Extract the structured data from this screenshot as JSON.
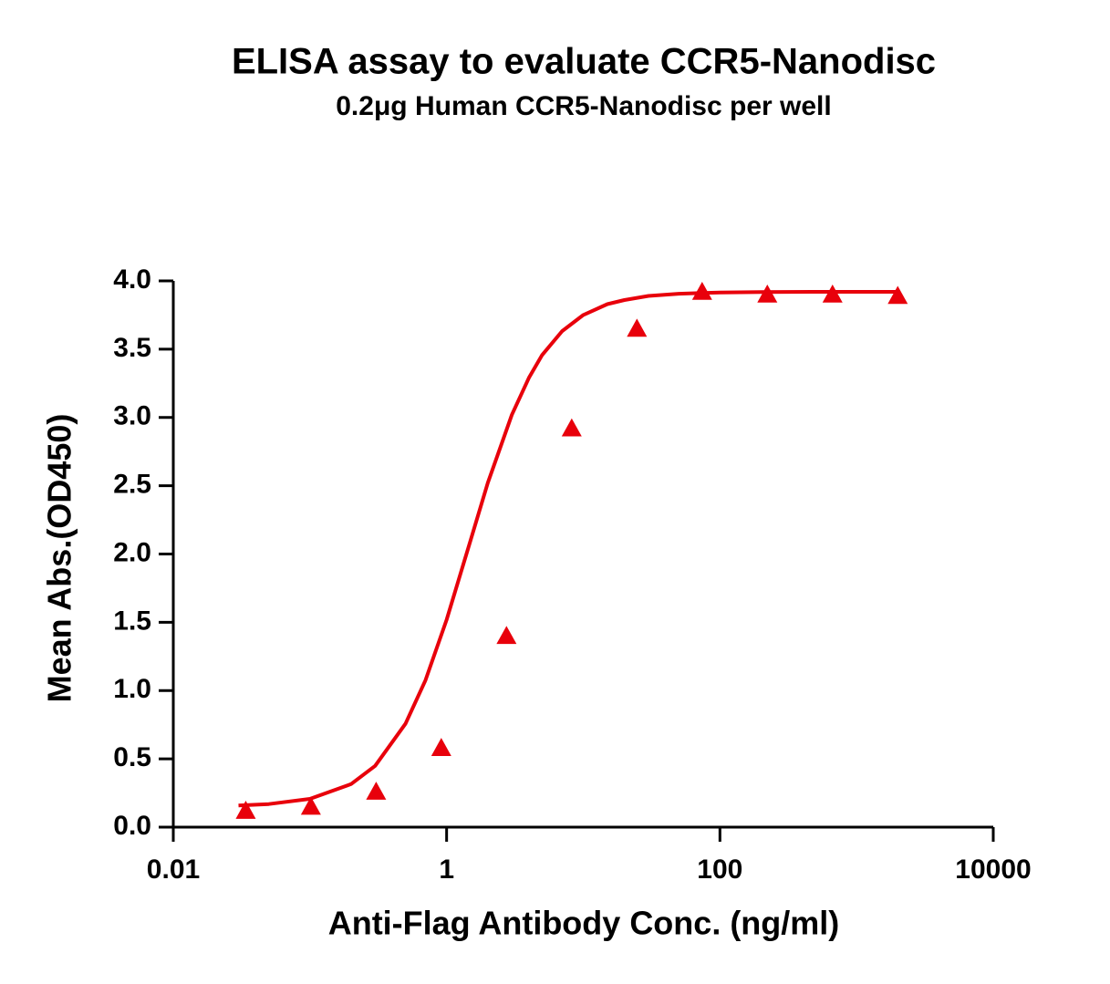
{
  "chart_data": {
    "type": "scatter",
    "title": "ELISA assay to evaluate CCR5-Nanodisc",
    "subtitle": "0.2μg Human CCR5-Nanodisc per well",
    "x_label": "Anti-Flag Antibody Conc. (ng/ml)",
    "y_label": "Mean Abs.(OD450)",
    "x": [
      0.0339,
      0.1016,
      0.305,
      0.914,
      2.743,
      8.23,
      24.69,
      74.07,
      222.2,
      666.7,
      2000
    ],
    "values": [
      0.12,
      0.15,
      0.26,
      0.58,
      1.4,
      2.92,
      3.65,
      3.92,
      3.9,
      3.9,
      3.89
    ],
    "color": "#e8000b",
    "marker": "triangle",
    "fit": {
      "x": [
        0.03,
        0.05,
        0.1,
        0.2,
        0.3,
        0.5,
        0.7,
        1,
        1.5,
        2,
        3,
        4,
        5,
        7,
        10,
        15,
        20,
        30,
        50,
        100,
        200,
        500,
        1000,
        2000
      ],
      "values": [
        0.159,
        0.169,
        0.207,
        0.315,
        0.449,
        0.757,
        1.076,
        1.519,
        2.104,
        2.52,
        3.02,
        3.29,
        3.457,
        3.632,
        3.75,
        3.83,
        3.86,
        3.89,
        3.906,
        3.915,
        3.918,
        3.92,
        3.92,
        3.92
      ]
    },
    "xscale": "log",
    "xlim": [
      0.01,
      10000
    ],
    "xticks": [
      0.01,
      1,
      100,
      10000
    ],
    "ylim": [
      0,
      4
    ],
    "yticks": [
      {
        "value": 0,
        "label": "0.0"
      },
      0.5,
      {
        "value": 1,
        "label": "1.0"
      },
      1.5,
      {
        "value": 2,
        "label": "2.0"
      },
      2.5,
      {
        "value": 3,
        "label": "3.0"
      },
      3.5,
      {
        "value": 4,
        "label": "4.0"
      }
    ],
    "grid": false
  }
}
